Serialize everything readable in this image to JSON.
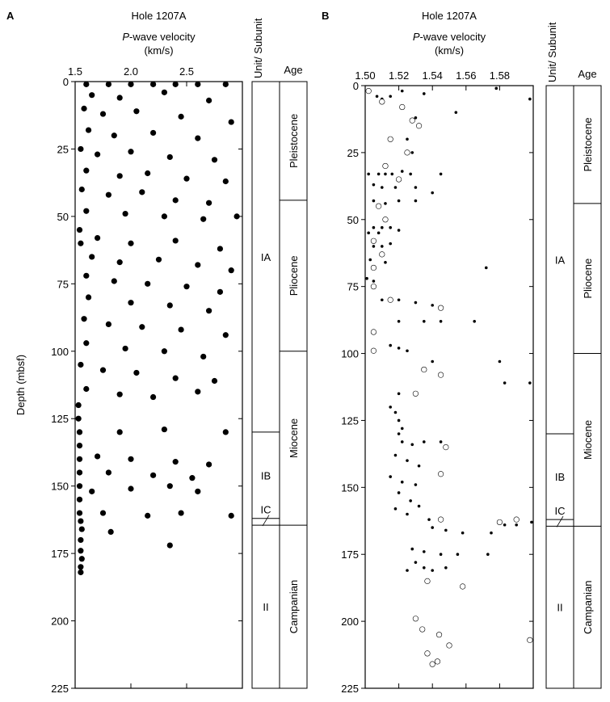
{
  "chart_data": [
    {
      "type": "scatter",
      "panel": "A",
      "title": "Hole 1207A",
      "x_label_italic": "P",
      "x_label": "-wave velocity",
      "x_unit": "(km/s)",
      "y_label": "Depth (mbsf)",
      "xlim": [
        1.5,
        3.0
      ],
      "xticks": [
        1.5,
        {
          "value": 2,
          "label": "2.0"
        },
        2.5
      ],
      "ylim": [
        0,
        225
      ],
      "yticks": [
        0,
        25,
        50,
        75,
        100,
        125,
        150,
        175,
        200,
        225
      ],
      "y_inverted": true,
      "series": [
        {
          "color": "#000000",
          "marker": "filled-large",
          "x": [
            1.6,
            1.8,
            2.0,
            2.2,
            2.4,
            2.6,
            2.85,
            1.65,
            1.9,
            2.3,
            2.7,
            1.58,
            1.75,
            2.05,
            2.45,
            2.9,
            1.62,
            1.85,
            2.2,
            2.6,
            1.55,
            1.7,
            2.0,
            2.35,
            2.75,
            1.6,
            1.9,
            2.15,
            2.5,
            2.85,
            1.56,
            1.8,
            2.1,
            2.4,
            2.7,
            1.6,
            1.95,
            2.3,
            2.65,
            2.95,
            1.54,
            1.55,
            1.7,
            2.0,
            2.4,
            2.8,
            1.65,
            1.9,
            2.25,
            2.6,
            2.9,
            1.6,
            1.85,
            2.15,
            2.5,
            2.8,
            1.62,
            2.0,
            2.35,
            2.7,
            1.58,
            1.8,
            2.1,
            2.45,
            2.85,
            1.6,
            1.95,
            2.3,
            2.65,
            1.55,
            1.75,
            2.05,
            2.4,
            2.75,
            1.6,
            1.9,
            2.2,
            2.6,
            1.53,
            1.53,
            1.54,
            1.54,
            1.54,
            1.54,
            1.54,
            1.54,
            1.54,
            1.55,
            1.9,
            2.3,
            2.85,
            1.7,
            2.0,
            2.4,
            2.7,
            1.8,
            2.2,
            2.55,
            1.65,
            2.0,
            2.35,
            2.6,
            1.75,
            2.15,
            2.45,
            2.9,
            1.82,
            2.35,
            1.56,
            1.55,
            1.55,
            1.56,
            1.55,
            1.55
          ],
          "values": [
            1,
            1,
            1,
            1,
            1,
            1,
            1,
            5,
            6,
            4,
            7,
            10,
            12,
            11,
            13,
            15,
            18,
            20,
            19,
            21,
            25,
            27,
            26,
            28,
            29,
            33,
            35,
            34,
            36,
            37,
            40,
            42,
            41,
            44,
            45,
            48,
            49,
            50,
            51,
            50,
            55,
            60,
            58,
            60,
            59,
            62,
            65,
            67,
            66,
            68,
            70,
            72,
            74,
            75,
            76,
            78,
            80,
            82,
            83,
            85,
            88,
            90,
            91,
            92,
            94,
            97,
            99,
            100,
            102,
            105,
            107,
            108,
            110,
            111,
            114,
            116,
            117,
            115,
            120,
            125,
            130,
            135,
            140,
            145,
            150,
            155,
            160,
            163,
            130,
            129,
            130,
            139,
            140,
            141,
            142,
            145,
            146,
            147,
            152,
            151,
            150,
            152,
            160,
            161,
            160,
            161,
            167,
            172,
            166,
            170,
            174,
            177,
            180,
            182
          ]
        }
      ],
      "unit_header": "Unit/ Subunit",
      "age_header": "Age",
      "units": [
        {
          "label": "IA",
          "top": 0,
          "bottom": 130
        },
        {
          "label": "IB",
          "top": 130,
          "bottom": 162
        },
        {
          "label": "IC",
          "top": 162,
          "bottom": 164.5
        },
        {
          "label": "II",
          "top": 164.5,
          "bottom": 225
        }
      ],
      "ages": [
        {
          "label": "Pleistocene",
          "top": 0,
          "bottom": 44
        },
        {
          "label": "Pliocene",
          "top": 44,
          "bottom": 100
        },
        {
          "label": "Miocene",
          "top": 100,
          "bottom": 164.5
        },
        {
          "label": "Campanian",
          "top": 164.5,
          "bottom": 225
        }
      ]
    },
    {
      "type": "scatter",
      "panel": "B",
      "title": "Hole 1207A",
      "x_label_italic": "P",
      "x_label": "-wave velocity",
      "x_unit": "(km/s)",
      "xlim": [
        1.5,
        1.6
      ],
      "xticks": [
        {
          "value": 1.5,
          "label": "1.50"
        },
        1.52,
        1.54,
        1.56,
        1.58
      ],
      "ylim": [
        0,
        225
      ],
      "yticks": [
        0,
        25,
        50,
        75,
        100,
        125,
        150,
        175,
        200,
        225
      ],
      "y_inverted": true,
      "series": [
        {
          "color": "#000000",
          "marker": "filled-small",
          "x": [
            1.507,
            1.51,
            1.515,
            1.522,
            1.535,
            1.578,
            1.598,
            1.53,
            1.554,
            1.525,
            1.528,
            1.502,
            1.508,
            1.512,
            1.516,
            1.522,
            1.527,
            1.545,
            1.505,
            1.51,
            1.518,
            1.53,
            1.54,
            1.505,
            1.512,
            1.52,
            1.53,
            1.505,
            1.51,
            1.515,
            1.52,
            1.502,
            1.508,
            1.505,
            1.51,
            1.515,
            1.503,
            1.512,
            1.501,
            1.505,
            1.572,
            1.51,
            1.52,
            1.53,
            1.54,
            1.52,
            1.535,
            1.545,
            1.565,
            1.515,
            1.52,
            1.525,
            1.54,
            1.58,
            1.598,
            1.583,
            1.52,
            1.515,
            1.518,
            1.52,
            1.522,
            1.52,
            1.522,
            1.528,
            1.535,
            1.545,
            1.518,
            1.525,
            1.532,
            1.515,
            1.522,
            1.53,
            1.52,
            1.527,
            1.532,
            1.518,
            1.525,
            1.538,
            1.54,
            1.548,
            1.558,
            1.575,
            1.59,
            1.599,
            1.583,
            1.528,
            1.535,
            1.545,
            1.555,
            1.573,
            1.53,
            1.535,
            1.54,
            1.548,
            1.525
          ],
          "values": [
            4,
            5,
            4,
            2,
            3,
            1,
            5,
            12,
            10,
            20,
            25,
            33,
            33,
            33,
            33,
            32,
            33,
            33,
            37,
            38,
            38,
            38,
            40,
            43,
            44,
            43,
            43,
            53,
            53,
            53,
            54,
            55,
            55,
            60,
            60,
            59,
            65,
            66,
            72,
            73,
            68,
            80,
            80,
            81,
            82,
            88,
            88,
            88,
            88,
            97,
            98,
            99,
            103,
            103,
            111,
            111,
            115,
            120,
            122,
            125,
            128,
            130,
            133,
            134,
            133,
            133,
            138,
            140,
            142,
            146,
            148,
            149,
            152,
            155,
            157,
            158,
            160,
            162,
            165,
            166,
            167,
            167,
            164,
            163,
            164,
            173,
            174,
            175,
            175,
            175,
            178,
            180,
            181,
            180,
            181
          ]
        },
        {
          "color": "#000000",
          "marker": "open",
          "x": [
            1.502,
            1.51,
            1.522,
            1.528,
            1.532,
            1.515,
            1.525,
            1.512,
            1.52,
            1.508,
            1.512,
            1.505,
            1.51,
            1.505,
            1.505,
            1.515,
            1.545,
            1.505,
            1.505,
            1.535,
            1.545,
            1.53,
            1.548,
            1.545,
            1.545,
            1.58,
            1.59,
            1.537,
            1.558,
            1.53,
            1.534,
            1.544,
            1.55,
            1.537,
            1.54,
            1.543,
            1.598
          ],
          "values": [
            2,
            6,
            8,
            13,
            15,
            20,
            25,
            30,
            35,
            45,
            50,
            58,
            63,
            68,
            75,
            80,
            83,
            92,
            99,
            106,
            108,
            115,
            135,
            145,
            162,
            163,
            162,
            185,
            187,
            199,
            203,
            205,
            209,
            212,
            216,
            215,
            207
          ]
        }
      ],
      "unit_header": "Unit/ Subunit",
      "age_header": "Age",
      "units": [
        {
          "label": "IA",
          "top": 0,
          "bottom": 130
        },
        {
          "label": "IB",
          "top": 130,
          "bottom": 162
        },
        {
          "label": "IC",
          "top": 162,
          "bottom": 164.5
        },
        {
          "label": "II",
          "top": 164.5,
          "bottom": 225
        }
      ],
      "ages": [
        {
          "label": "Pleistocene",
          "top": 0,
          "bottom": 44
        },
        {
          "label": "Pliocene",
          "top": 44,
          "bottom": 100
        },
        {
          "label": "Miocene",
          "top": 100,
          "bottom": 164.5
        },
        {
          "label": "Campanian",
          "top": 164.5,
          "bottom": 225
        }
      ]
    }
  ]
}
